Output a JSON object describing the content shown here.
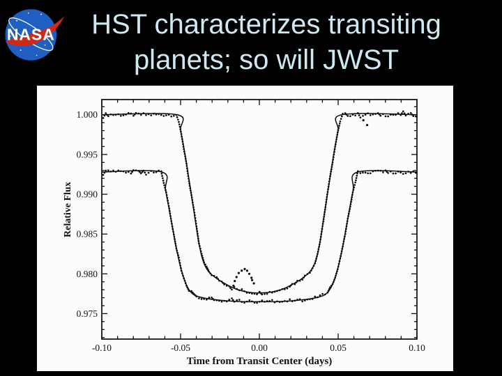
{
  "slide": {
    "title_lines": [
      "HST characterizes transiting",
      "planets; so will JWST"
    ],
    "title_color": "#cfe9f2",
    "background_color": "#000000"
  },
  "logo": {
    "wordmark": "NASA",
    "ball_color": "#1e5fc1",
    "swoosh_color": "#d0291a",
    "orbit_color": "#ffffff",
    "text_color": "#ffffff"
  },
  "chart_data": {
    "type": "line",
    "title": "",
    "xlabel": "Time from Transit Center (days)",
    "ylabel": "Relative Flux",
    "xlim": [
      -0.1,
      0.1
    ],
    "ylim": [
      0.9718,
      1.0019
    ],
    "grid": false,
    "frame_ticks_all_sides": true,
    "x_major_ticks": [
      -0.1,
      -0.05,
      0.0,
      0.05,
      0.1
    ],
    "x_tick_labels": [
      "-0.10",
      "-0.05",
      "0.00",
      "0.05",
      "0.10"
    ],
    "x_minor_step": 0.01,
    "y_major_ticks": [
      1.0,
      0.995,
      0.99,
      0.985,
      0.98,
      0.975
    ],
    "y_tick_labels": [
      "1.000",
      "0.995",
      "0.990",
      "0.985",
      "0.980",
      "0.975"
    ],
    "y_minor_step": 0.001,
    "line_color": "#0a0a0a",
    "series": [
      {
        "name": "upper_curve_baseline_1.000",
        "baseline": 1.0,
        "depth_min": 0.9776,
        "ingress_start": -0.0525,
        "egress_end": 0.0525,
        "noise": 0.00022,
        "dot_step": 0.0016,
        "anchors": [
          [
            -0.1,
            1.0
          ],
          [
            -0.0525,
            1.0
          ],
          [
            -0.05,
            0.998
          ],
          [
            -0.047,
            0.9948
          ],
          [
            -0.044,
            0.991
          ],
          [
            -0.041,
            0.9872
          ],
          [
            -0.0385,
            0.984
          ],
          [
            -0.036,
            0.9818
          ],
          [
            -0.033,
            0.9805
          ],
          [
            -0.029,
            0.9797
          ],
          [
            -0.023,
            0.9789
          ],
          [
            -0.015,
            0.9781
          ],
          [
            -0.007,
            0.9777
          ],
          [
            0.0,
            0.9776
          ],
          [
            0.007,
            0.9777
          ],
          [
            0.015,
            0.9781
          ],
          [
            0.023,
            0.9789
          ],
          [
            0.029,
            0.9797
          ],
          [
            0.033,
            0.9805
          ],
          [
            0.036,
            0.9818
          ],
          [
            0.0385,
            0.984
          ],
          [
            0.041,
            0.9872
          ],
          [
            0.044,
            0.991
          ],
          [
            0.047,
            0.9948
          ],
          [
            0.05,
            0.998
          ],
          [
            0.0525,
            1.0
          ],
          [
            0.1,
            1.0
          ]
        ]
      },
      {
        "name": "lower_curve_baseline_0.993_offset",
        "baseline": 0.9928,
        "depth_min": 0.9765,
        "ingress_start": -0.062,
        "egress_end": 0.0625,
        "noise": 0.00022,
        "dot_step": 0.0016,
        "anchors": [
          [
            -0.1,
            0.9928
          ],
          [
            -0.062,
            0.9928
          ],
          [
            -0.0595,
            0.9905
          ],
          [
            -0.056,
            0.9868
          ],
          [
            -0.0525,
            0.983
          ],
          [
            -0.0495,
            0.9805
          ],
          [
            -0.0465,
            0.9787
          ],
          [
            -0.043,
            0.9776
          ],
          [
            -0.038,
            0.9771
          ],
          [
            -0.03,
            0.9768
          ],
          [
            -0.02,
            0.9766
          ],
          [
            -0.01,
            0.9765
          ],
          [
            0.0,
            0.9765
          ],
          [
            0.01,
            0.9765
          ],
          [
            0.02,
            0.9766
          ],
          [
            0.03,
            0.9768
          ],
          [
            0.038,
            0.9771
          ],
          [
            0.043,
            0.9776
          ],
          [
            0.0465,
            0.9787
          ],
          [
            0.0495,
            0.9805
          ],
          [
            0.0525,
            0.983
          ],
          [
            0.056,
            0.9868
          ],
          [
            0.0595,
            0.9905
          ],
          [
            0.0625,
            0.9928
          ],
          [
            0.1,
            0.9928
          ]
        ]
      }
    ],
    "outlier_points": [
      [
        -0.0164,
        0.9785
      ],
      [
        -0.0156,
        0.9791
      ],
      [
        -0.0145,
        0.9796
      ],
      [
        -0.0131,
        0.9801
      ],
      [
        -0.0112,
        0.9804
      ],
      [
        -0.0093,
        0.9806
      ],
      [
        -0.0078,
        0.9804
      ],
      [
        -0.0064,
        0.98
      ],
      [
        -0.005,
        0.9795
      ],
      [
        -0.0046,
        0.9792
      ],
      [
        -0.0035,
        0.9788
      ],
      [
        0.066,
        0.9993
      ],
      [
        0.0684,
        0.9987
      ]
    ]
  }
}
